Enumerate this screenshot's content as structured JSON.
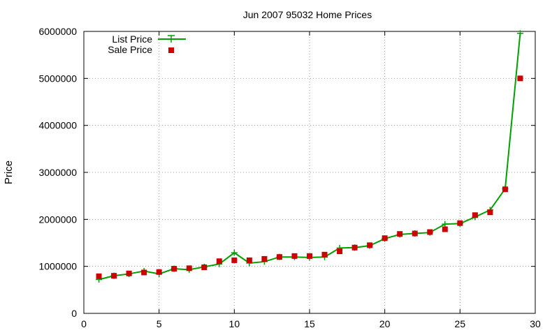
{
  "chart_data": {
    "type": "line",
    "title": "Jun 2007 95032 Home Prices",
    "xlabel": "",
    "ylabel": "Price",
    "xlim": [
      0,
      30
    ],
    "ylim": [
      0,
      6000000
    ],
    "x_ticks": [
      "0",
      "5",
      "10",
      "15",
      "20",
      "25",
      "30"
    ],
    "y_ticks": [
      "0",
      "1000000",
      "2000000",
      "3000000",
      "4000000",
      "5000000",
      "6000000"
    ],
    "grid": true,
    "legend_position": "top-left",
    "x": [
      1,
      2,
      3,
      4,
      5,
      6,
      7,
      8,
      9,
      10,
      11,
      12,
      13,
      14,
      15,
      16,
      17,
      18,
      19,
      20,
      21,
      22,
      23,
      24,
      25,
      26,
      27,
      28,
      29
    ],
    "series": [
      {
        "name": "List Price",
        "style": "line+cross",
        "color": "#00a000",
        "values": [
          720000,
          800000,
          840000,
          900000,
          840000,
          950000,
          930000,
          990000,
          1050000,
          1290000,
          1070000,
          1100000,
          1200000,
          1200000,
          1190000,
          1200000,
          1390000,
          1400000,
          1440000,
          1590000,
          1680000,
          1700000,
          1720000,
          1900000,
          1910000,
          2050000,
          2200000,
          2650000,
          5960000
        ]
      },
      {
        "name": "Sale Price",
        "style": "square",
        "color": "#cc0000",
        "values": [
          790000,
          800000,
          850000,
          870000,
          880000,
          950000,
          960000,
          980000,
          1110000,
          1130000,
          1130000,
          1160000,
          1200000,
          1220000,
          1220000,
          1250000,
          1320000,
          1400000,
          1450000,
          1600000,
          1690000,
          1700000,
          1730000,
          1790000,
          1920000,
          2090000,
          2150000,
          2640000,
          5000000
        ]
      }
    ]
  }
}
